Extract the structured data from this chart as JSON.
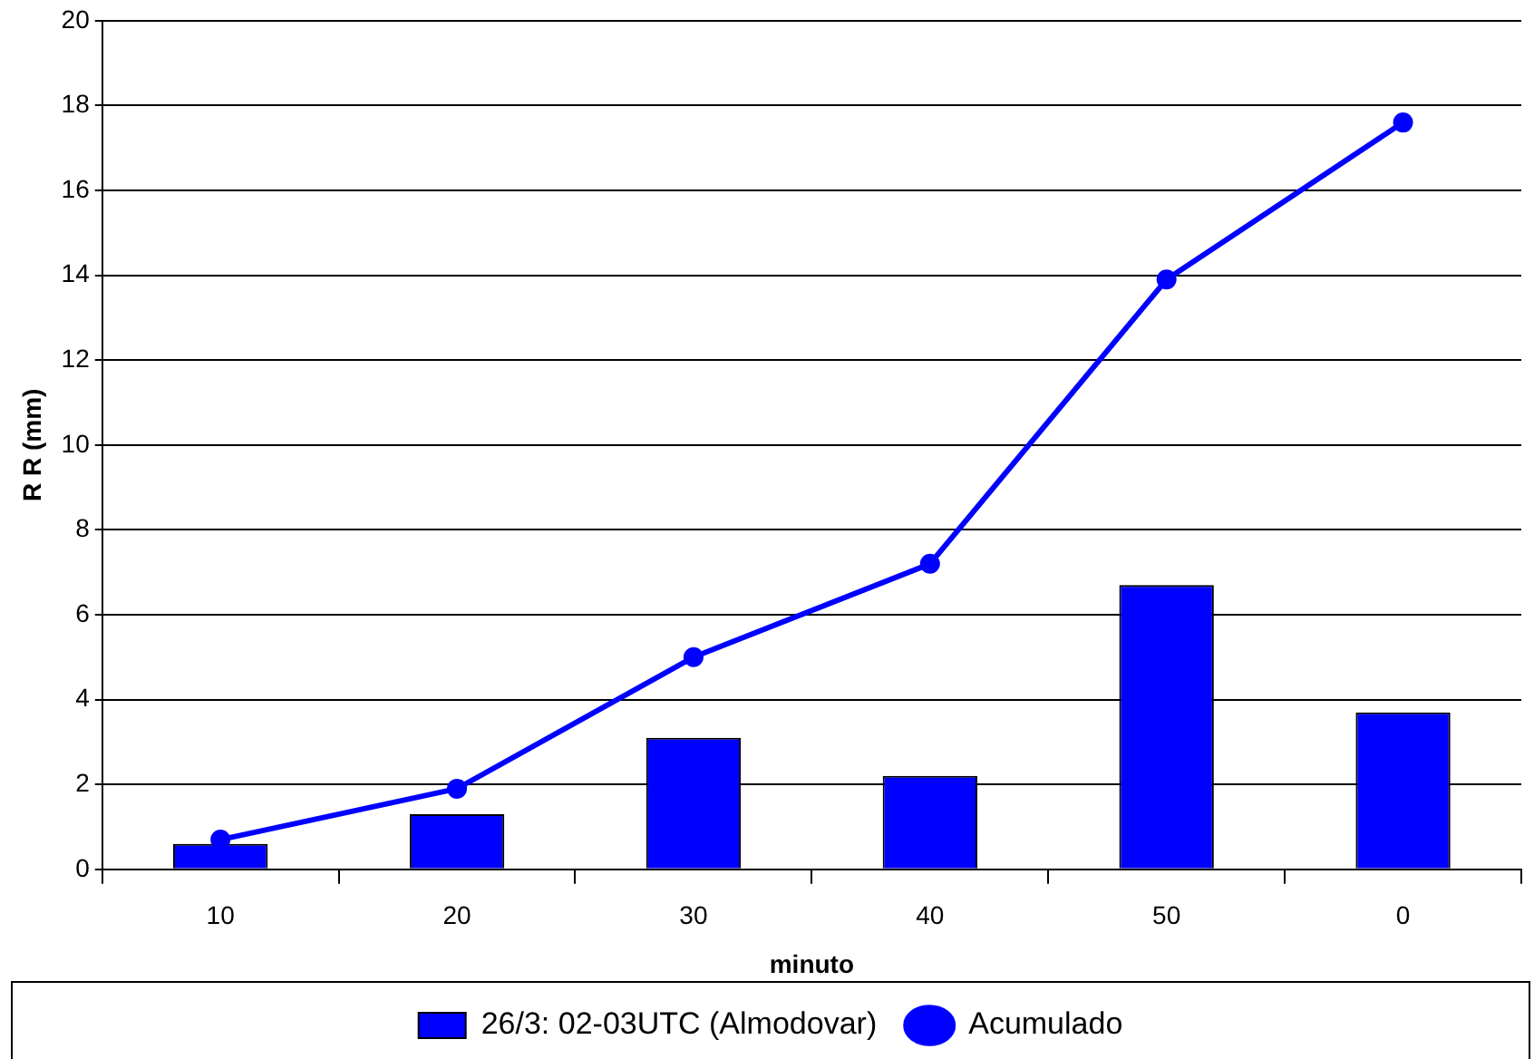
{
  "chart_data": {
    "type": "bar",
    "xlabel": "minuto",
    "ylabel": "R R (mm)",
    "categories": [
      "10",
      "20",
      "30",
      "40",
      "50",
      "0"
    ],
    "series": [
      {
        "name": "26/3: 02-03UTC (Almodovar)",
        "color": "#0000ff",
        "values": [
          0.6,
          1.3,
          3.1,
          2.2,
          6.7,
          3.7
        ]
      },
      {
        "name": "Acumulado",
        "type": "line",
        "color": "#0000ff",
        "values": [
          0.7,
          1.9,
          5.0,
          7.2,
          13.9,
          17.6
        ]
      }
    ],
    "ylim": [
      0,
      20
    ],
    "yticks": [
      0,
      2,
      4,
      6,
      8,
      10,
      12,
      14,
      16,
      18,
      20
    ],
    "grid": "y",
    "legend": "bottom",
    "marker": "circle",
    "line_style": "solid"
  }
}
